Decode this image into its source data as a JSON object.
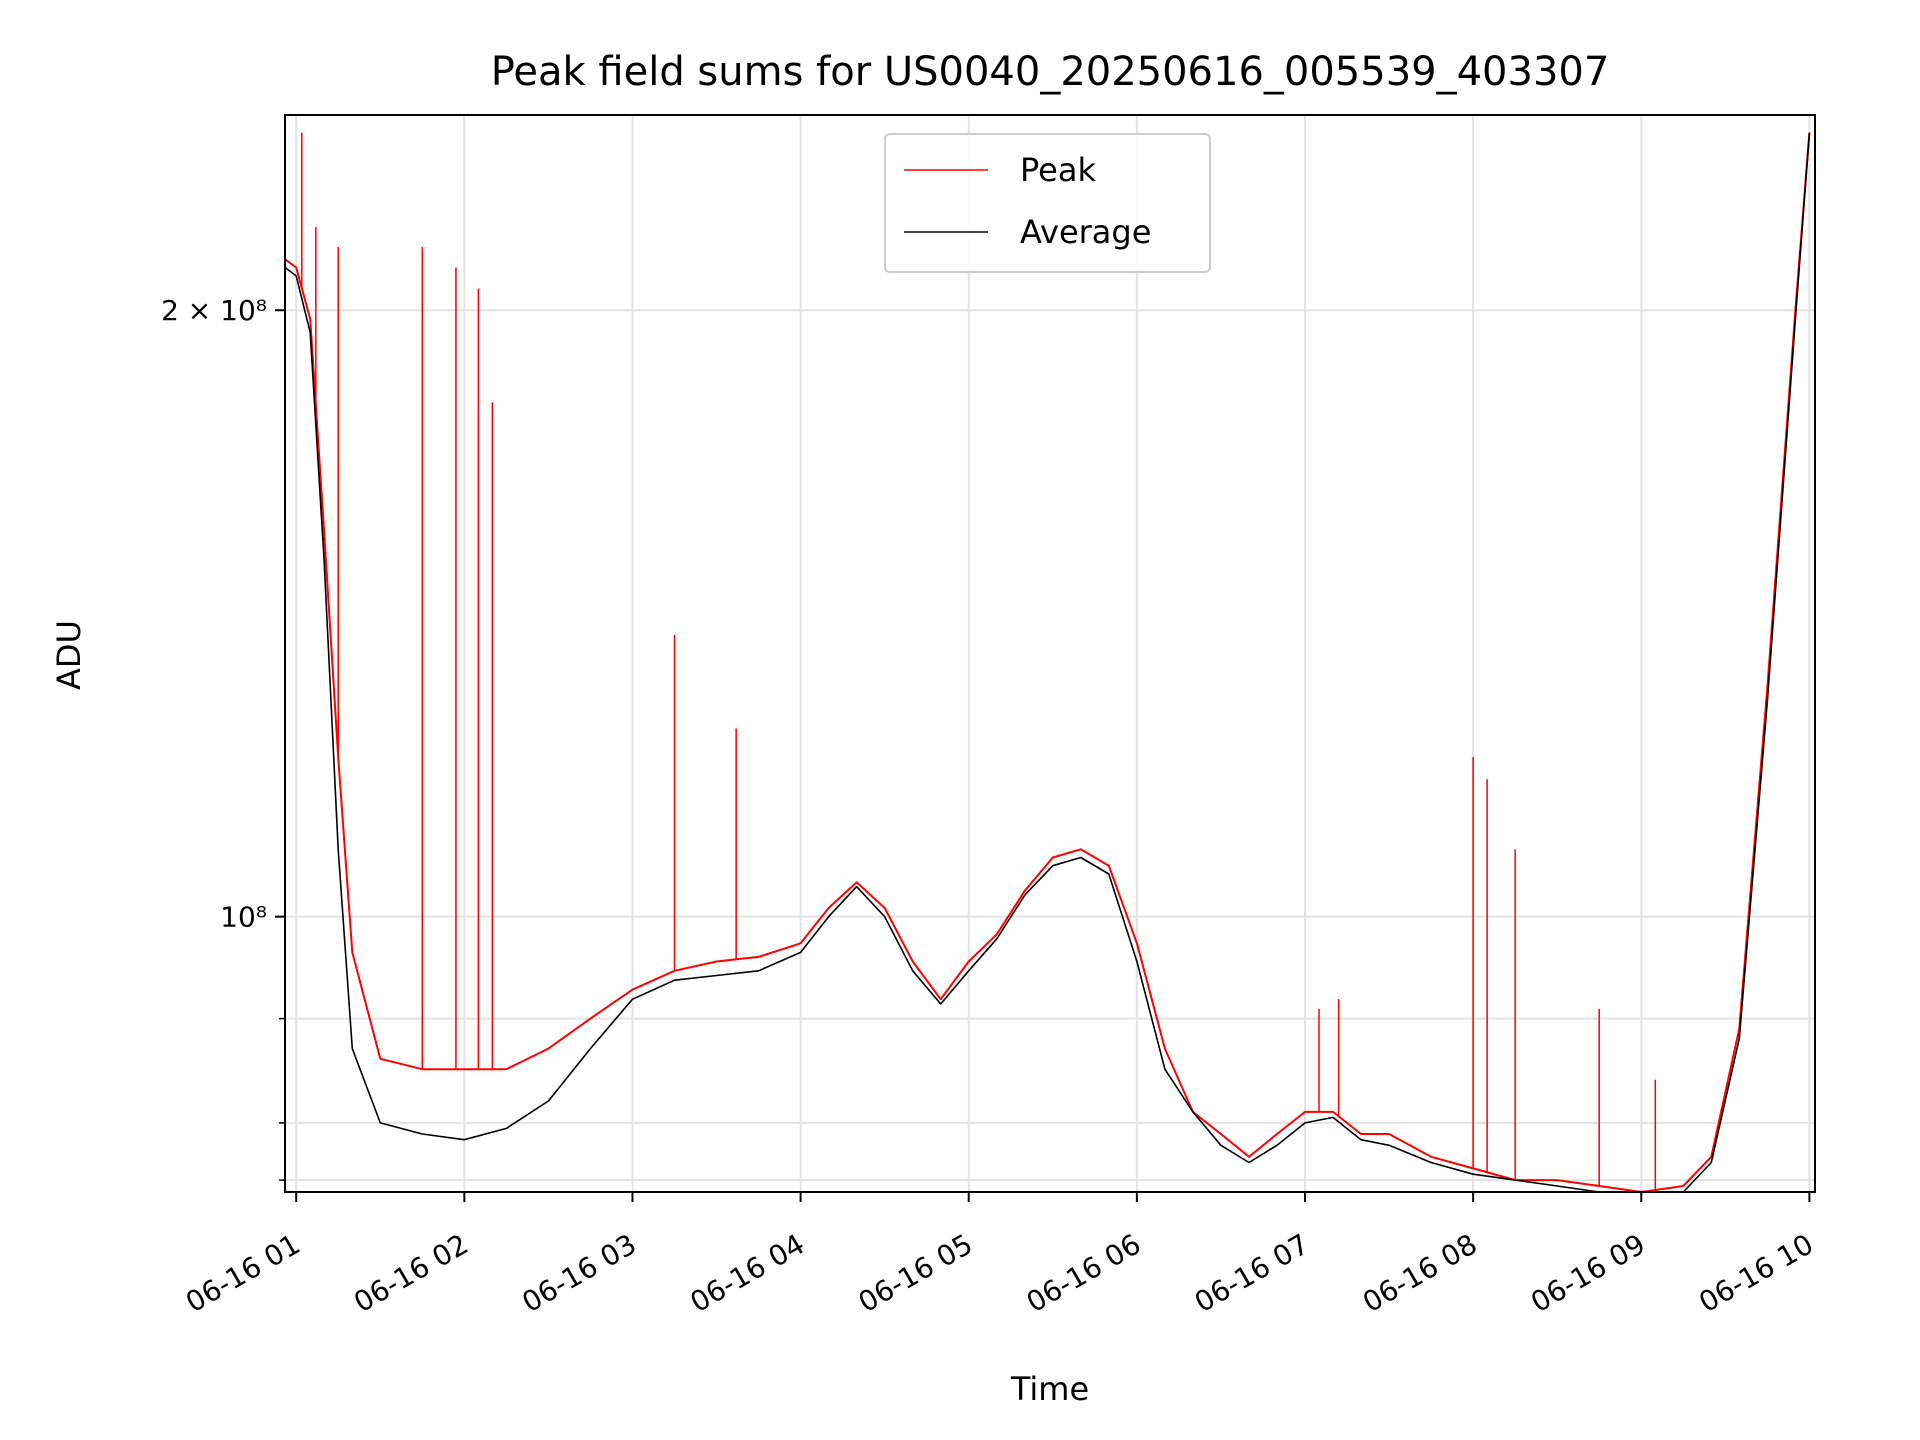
{
  "chart_data": {
    "type": "line",
    "title": "Peak field sums for US0040_20250616_005539_403307",
    "xlabel": "Time",
    "ylabel": "ADU",
    "yscale": "log",
    "ylim": [
      73000000,
      250000000
    ],
    "xlim": [
      "06-16 00:56",
      "06-16 10:02"
    ],
    "x_ticks": [
      "06-16 01",
      "06-16 02",
      "06-16 03",
      "06-16 04",
      "06-16 05",
      "06-16 06",
      "06-16 07",
      "06-16 08",
      "06-16 09",
      "06-16 10"
    ],
    "y_ticks": [
      {
        "value": 200000000,
        "label": "2 × 10⁸"
      },
      {
        "value": 100000000,
        "label": "10⁸"
      }
    ],
    "y_minor_ticks": [
      74000000,
      79000000,
      89000000
    ],
    "grid": true,
    "legend_position": "upper center",
    "series": [
      {
        "name": "Peak",
        "color": "#ff0000",
        "x": [
          "06-16 00:56",
          "06-16 01:00",
          "06-16 01:05",
          "06-16 01:10",
          "06-16 01:15",
          "06-16 01:20",
          "06-16 01:30",
          "06-16 01:45",
          "06-16 02:00",
          "06-16 02:15",
          "06-16 02:30",
          "06-16 02:45",
          "06-16 03:00",
          "06-16 03:15",
          "06-16 03:30",
          "06-16 03:45",
          "06-16 04:00",
          "06-16 04:10",
          "06-16 04:20",
          "06-16 04:30",
          "06-16 04:40",
          "06-16 04:50",
          "06-16 05:00",
          "06-16 05:10",
          "06-16 05:20",
          "06-16 05:30",
          "06-16 05:40",
          "06-16 05:50",
          "06-16 06:00",
          "06-16 06:10",
          "06-16 06:20",
          "06-16 06:30",
          "06-16 06:40",
          "06-16 06:50",
          "06-16 07:00",
          "06-16 07:10",
          "06-16 07:20",
          "06-16 07:30",
          "06-16 07:45",
          "06-16 08:00",
          "06-16 08:15",
          "06-16 08:30",
          "06-16 08:45",
          "06-16 09:00",
          "06-16 09:15",
          "06-16 09:25",
          "06-16 09:35",
          "06-16 09:45",
          "06-16 09:55",
          "06-16 10:00"
        ],
        "y": [
          212000000,
          210000000,
          198000000,
          155000000,
          120000000,
          96000000,
          85000000,
          84000000,
          84000000,
          84000000,
          86000000,
          89000000,
          92000000,
          94000000,
          95000000,
          95500000,
          97000000,
          101000000,
          104000000,
          101000000,
          95000000,
          91000000,
          95000000,
          98000000,
          103000000,
          107000000,
          108000000,
          106000000,
          97000000,
          86000000,
          80000000,
          78000000,
          76000000,
          78000000,
          80000000,
          80000000,
          78000000,
          78000000,
          76000000,
          75000000,
          74000000,
          74000000,
          73500000,
          73000000,
          73500000,
          76000000,
          88000000,
          130000000,
          200000000,
          245000000
        ]
      },
      {
        "name": "Average",
        "color": "#000000",
        "x": [
          "06-16 00:56",
          "06-16 01:00",
          "06-16 01:05",
          "06-16 01:10",
          "06-16 01:15",
          "06-16 01:20",
          "06-16 01:30",
          "06-16 01:45",
          "06-16 02:00",
          "06-16 02:15",
          "06-16 02:30",
          "06-16 02:45",
          "06-16 03:00",
          "06-16 03:15",
          "06-16 03:30",
          "06-16 03:45",
          "06-16 04:00",
          "06-16 04:10",
          "06-16 04:20",
          "06-16 04:30",
          "06-16 04:40",
          "06-16 04:50",
          "06-16 05:00",
          "06-16 05:10",
          "06-16 05:20",
          "06-16 05:30",
          "06-16 05:40",
          "06-16 05:50",
          "06-16 06:00",
          "06-16 06:10",
          "06-16 06:20",
          "06-16 06:30",
          "06-16 06:40",
          "06-16 06:50",
          "06-16 07:00",
          "06-16 07:10",
          "06-16 07:20",
          "06-16 07:30",
          "06-16 07:45",
          "06-16 08:00",
          "06-16 08:15",
          "06-16 08:30",
          "06-16 08:45",
          "06-16 09:00",
          "06-16 09:15",
          "06-16 09:25",
          "06-16 09:35",
          "06-16 09:45",
          "06-16 09:55",
          "06-16 10:00"
        ],
        "y": [
          210000000,
          208000000,
          195000000,
          150000000,
          108000000,
          86000000,
          79000000,
          78000000,
          77500000,
          78500000,
          81000000,
          86000000,
          91000000,
          93000000,
          93500000,
          94000000,
          96000000,
          100000000,
          103500000,
          100000000,
          94000000,
          90500000,
          94000000,
          97500000,
          102500000,
          106000000,
          107000000,
          105000000,
          95000000,
          84000000,
          80000000,
          77000000,
          75500000,
          77000000,
          79000000,
          79500000,
          77500000,
          77000000,
          75500000,
          74500000,
          74000000,
          73500000,
          73000000,
          72800000,
          73000000,
          75500000,
          87000000,
          128000000,
          198000000,
          245000000
        ]
      }
    ],
    "spikes": [
      {
        "x": "06-16 01:02",
        "y": 245000000
      },
      {
        "x": "06-16 01:07",
        "y": 220000000
      },
      {
        "x": "06-16 01:15",
        "y": 215000000
      },
      {
        "x": "06-16 01:45",
        "y": 215000000
      },
      {
        "x": "06-16 01:57",
        "y": 210000000
      },
      {
        "x": "06-16 02:05",
        "y": 205000000
      },
      {
        "x": "06-16 02:10",
        "y": 180000000
      },
      {
        "x": "06-16 03:15",
        "y": 138000000
      },
      {
        "x": "06-16 03:37",
        "y": 124000000
      },
      {
        "x": "06-16 07:05",
        "y": 90000000
      },
      {
        "x": "06-16 07:12",
        "y": 91000000
      },
      {
        "x": "06-16 08:00",
        "y": 120000000
      },
      {
        "x": "06-16 08:05",
        "y": 117000000
      },
      {
        "x": "06-16 08:15",
        "y": 108000000
      },
      {
        "x": "06-16 08:45",
        "y": 90000000
      },
      {
        "x": "06-16 09:05",
        "y": 83000000
      }
    ]
  }
}
